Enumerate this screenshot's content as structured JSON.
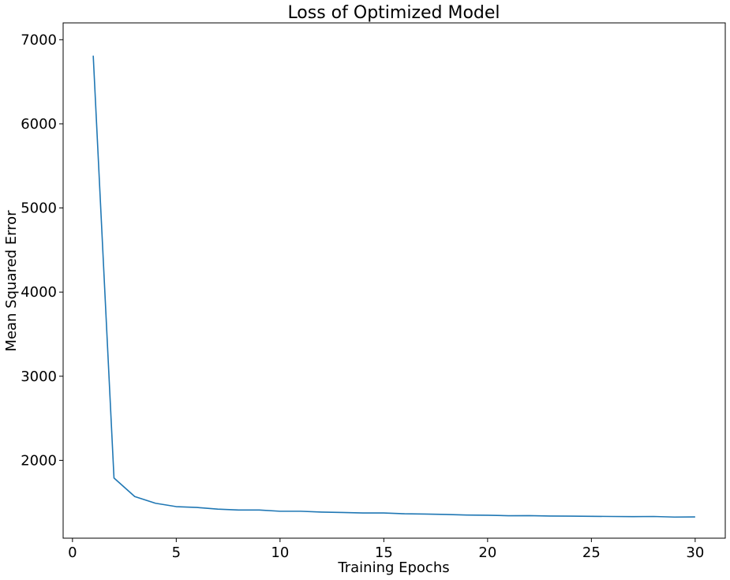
{
  "chart_data": {
    "type": "line",
    "title": "Loss of Optimized Model",
    "xlabel": "Training Epochs",
    "ylabel": "Mean Squared Error",
    "xlim": [
      -0.45,
      31.45
    ],
    "ylim": [
      1075,
      7200
    ],
    "x_ticks": [
      0,
      5,
      10,
      15,
      20,
      25,
      30
    ],
    "y_ticks": [
      2000,
      3000,
      4000,
      5000,
      6000,
      7000
    ],
    "grid": false,
    "legend": "none",
    "series": [
      {
        "color": "#1f77b4",
        "x": [
          1,
          2,
          3,
          4,
          5,
          6,
          7,
          8,
          9,
          10,
          11,
          12,
          13,
          14,
          15,
          16,
          17,
          18,
          19,
          20,
          21,
          22,
          23,
          24,
          25,
          26,
          27,
          28,
          29,
          30
        ],
        "y": [
          6810,
          1790,
          1570,
          1490,
          1450,
          1440,
          1420,
          1410,
          1410,
          1395,
          1395,
          1385,
          1380,
          1375,
          1375,
          1365,
          1362,
          1357,
          1350,
          1348,
          1342,
          1343,
          1338,
          1337,
          1335,
          1333,
          1331,
          1333,
          1326,
          1328
        ]
      }
    ]
  }
}
